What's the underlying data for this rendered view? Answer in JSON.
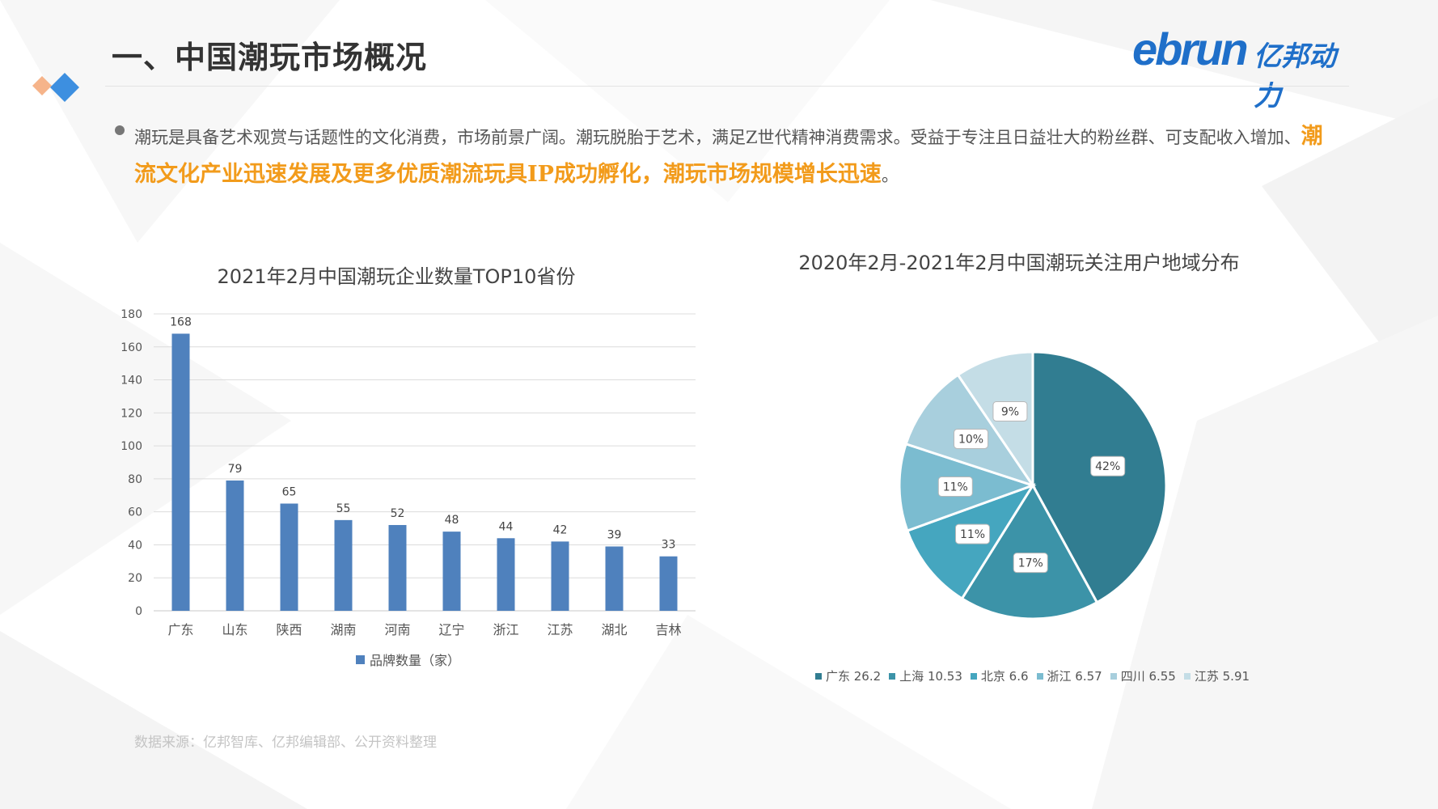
{
  "header": {
    "title": "一、中国潮玩市场概况",
    "logo_en": "ebrun",
    "logo_cn": "亿邦动力",
    "brand_color": "#1f6fc9"
  },
  "intro": {
    "text_normal": "潮玩是具备艺术观赏与话题性的文化消费，市场前景广阔。潮玩脱胎于艺术，满足Z世代精神消费需求。受益于专注且日益壮大的粉丝群、可支配收入增加、",
    "text_highlight": "潮流文化产业迅速发展及更多优质潮流玩具IP成功孵化，潮玩市场规模增长迅速",
    "text_end": "。",
    "highlight_color": "#f29b1b"
  },
  "source": "数据来源：亿邦智库、亿邦编辑部、公开资料整理",
  "chart_data": [
    {
      "type": "bar",
      "title": "2021年2月中国潮玩企业数量TOP10省份",
      "categories": [
        "广东",
        "山东",
        "陕西",
        "湖南",
        "河南",
        "辽宁",
        "浙江",
        "江苏",
        "湖北",
        "吉林"
      ],
      "series": [
        {
          "name": "品牌数量（家）",
          "values": [
            168,
            79,
            65,
            55,
            52,
            48,
            44,
            42,
            39,
            33
          ],
          "color": "#4f81bd"
        }
      ],
      "ylim": [
        0,
        180
      ],
      "yticks": [
        0,
        20,
        40,
        60,
        80,
        100,
        120,
        140,
        160,
        180
      ],
      "grid": true,
      "legend": "bottom",
      "data_labels": true
    },
    {
      "type": "pie",
      "title": "2020年2月-2021年2月中国潮玩关注用户地域分布",
      "labels": [
        "广东",
        "上海",
        "北京",
        "浙江",
        "四川",
        "江苏"
      ],
      "values": [
        26.2,
        10.53,
        6.6,
        6.57,
        6.55,
        5.91
      ],
      "percent_labels": [
        "42%",
        "17%",
        "11%",
        "11%",
        "10%",
        "9%"
      ],
      "legend_labels": [
        "广东 26.2",
        "上海 10.53",
        "北京 6.6",
        "浙江 6.57",
        "四川 6.55",
        "江苏 5.91"
      ],
      "colors": [
        "#317d91",
        "#3c93a8",
        "#45a6bf",
        "#7bbcd0",
        "#a8cfdd",
        "#c4dde6"
      ],
      "legend": "bottom",
      "start": "12 o'clock, clockwise"
    }
  ]
}
